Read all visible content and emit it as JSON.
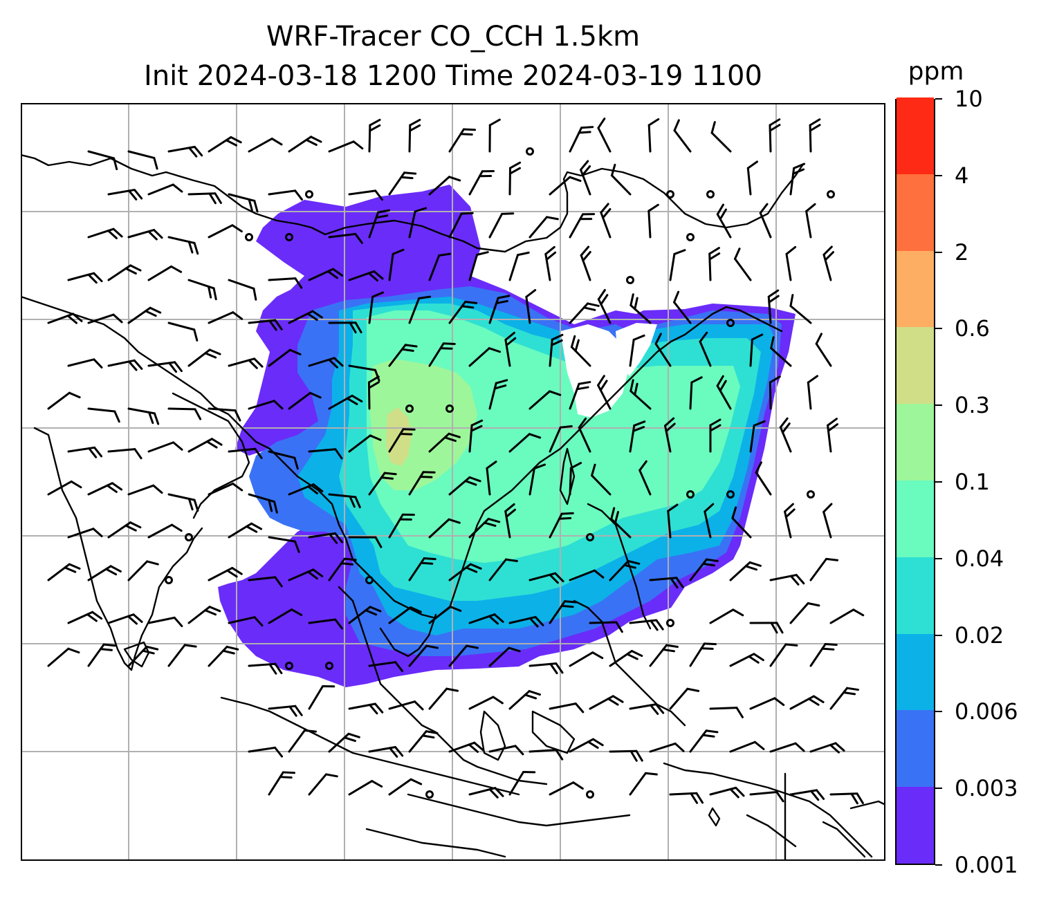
{
  "title": {
    "line1": "WRF-Tracer CO_CCH 1.5km",
    "line2": "Init 2024-03-18 1200 Time 2024-03-19 1100"
  },
  "colorbar": {
    "unit": "ppm",
    "levels": [
      {
        "label": "0.001",
        "color": "#6a2cf9"
      },
      {
        "label": "0.003",
        "color": "#3a72f5"
      },
      {
        "label": "0.006",
        "color": "#0cb1e8"
      },
      {
        "label": "0.02",
        "color": "#2ee0d3"
      },
      {
        "label": "0.04",
        "color": "#6afbbf"
      },
      {
        "label": "0.1",
        "color": "#9ef69a"
      },
      {
        "label": "0.3",
        "color": "#d0de88"
      },
      {
        "label": "0.6",
        "color": "#fdae62"
      },
      {
        "label": "2",
        "color": "#fe703d"
      },
      {
        "label": "4",
        "color": "#fe2a15"
      },
      {
        "label": "10",
        "color": "#fe2a15"
      }
    ]
  },
  "map": {
    "gridlines": true,
    "grid_color": "#b0b0b0",
    "coastline_color": "#000000",
    "wind_barb_color": "#000000",
    "field_name": "CO_CCH tracer concentration"
  }
}
